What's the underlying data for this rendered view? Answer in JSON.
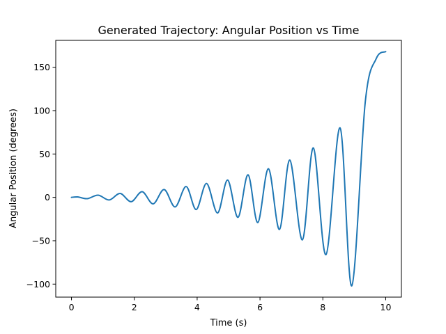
{
  "chart_data": {
    "type": "line",
    "title": "Generated Trajectory: Angular Position vs Time",
    "xlabel": "Time (s)",
    "ylabel": "Angular Position (degrees)",
    "xlim": [
      -0.5,
      10.5
    ],
    "ylim": [
      -115,
      181
    ],
    "grid": false,
    "legend": "none",
    "x_ticks": [
      0,
      2,
      4,
      6,
      8,
      10
    ],
    "x_tick_labels": [
      "0",
      "2",
      "4",
      "6",
      "8",
      "10"
    ],
    "y_ticks": [
      -100,
      -50,
      0,
      50,
      100,
      150
    ],
    "y_tick_labels": [
      "−100",
      "−50",
      "0",
      "50",
      "100",
      "150"
    ],
    "series": [
      {
        "color": "#1f77b4",
        "x": [
          0,
          0.2,
          0.5,
          0.85,
          1.2,
          1.55,
          1.9,
          2.25,
          2.6,
          2.95,
          3.3,
          3.65,
          3.97,
          4.3,
          4.65,
          4.97,
          5.3,
          5.62,
          5.93,
          6.27,
          6.62,
          6.95,
          7.35,
          7.7,
          8.1,
          8.55,
          8.92,
          9.35,
          9.7,
          10.0
        ],
        "y": [
          0,
          0.5,
          -1.5,
          2.5,
          -3,
          4.5,
          -5,
          6.5,
          -7.5,
          9,
          -11,
          12.5,
          -14,
          16,
          -18,
          20,
          -23,
          26,
          -29,
          33,
          -37,
          43,
          -49,
          57,
          -66,
          80,
          -102,
          110,
          160,
          168
        ]
      }
    ]
  }
}
